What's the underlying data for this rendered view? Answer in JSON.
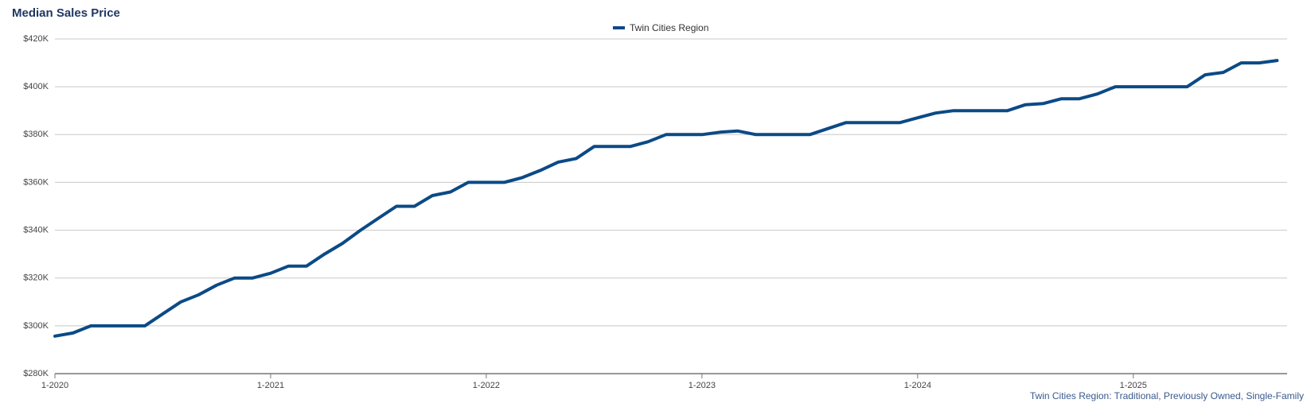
{
  "chart_data": {
    "type": "line",
    "title": "Median Sales Price",
    "note": "Twin Cities Region: Traditional, Previously Owned, Single-Family",
    "categories": [
      "1-2020",
      null,
      null,
      null,
      null,
      null,
      null,
      null,
      null,
      null,
      null,
      null,
      "1-2021",
      null,
      null,
      null,
      null,
      null,
      null,
      null,
      null,
      null,
      null,
      null,
      "1-2022",
      null,
      null,
      null,
      null,
      null,
      null,
      null,
      null,
      null,
      null,
      null,
      "1-2023",
      null,
      null,
      null,
      null,
      null,
      null,
      null,
      null,
      null,
      null,
      null,
      "1-2024",
      null,
      null,
      null,
      null,
      null,
      null,
      null,
      null,
      null,
      null,
      null,
      "1-2025",
      null,
      null,
      null,
      null,
      null,
      null,
      null,
      null
    ],
    "series": [
      {
        "name": "Twin Cities Region",
        "color": "#0b4a86",
        "values": [
          295700,
          297000,
          300000,
          300000,
          300000,
          300000,
          305000,
          310000,
          313000,
          317000,
          320000,
          320000,
          322000,
          325000,
          325000,
          330000,
          334500,
          340000,
          345000,
          350000,
          350000,
          354500,
          356000,
          360000,
          360000,
          360000,
          362000,
          365000,
          368500,
          370000,
          375000,
          375000,
          375000,
          377000,
          380000,
          380000,
          380000,
          381000,
          381500,
          380000,
          380000,
          380000,
          380000,
          382500,
          385000,
          385000,
          385000,
          385000,
          387000,
          389000,
          390000,
          390000,
          390000,
          390000,
          392500,
          393000,
          395000,
          395000,
          397000,
          400000,
          400000,
          400000,
          400000,
          400000,
          405000,
          406000,
          410000,
          410000,
          411000
        ]
      }
    ],
    "ylim": [
      280000,
      420000
    ],
    "yticks": [
      {
        "value": 280000,
        "label": "$280K"
      },
      {
        "value": 300000,
        "label": "$300K"
      },
      {
        "value": 320000,
        "label": "$320K"
      },
      {
        "value": 340000,
        "label": "$340K"
      },
      {
        "value": 360000,
        "label": "$360K"
      },
      {
        "value": 380000,
        "label": "$380K"
      },
      {
        "value": 400000,
        "label": "$400K"
      },
      {
        "value": 420000,
        "label": "$420K"
      }
    ],
    "grid": true
  }
}
